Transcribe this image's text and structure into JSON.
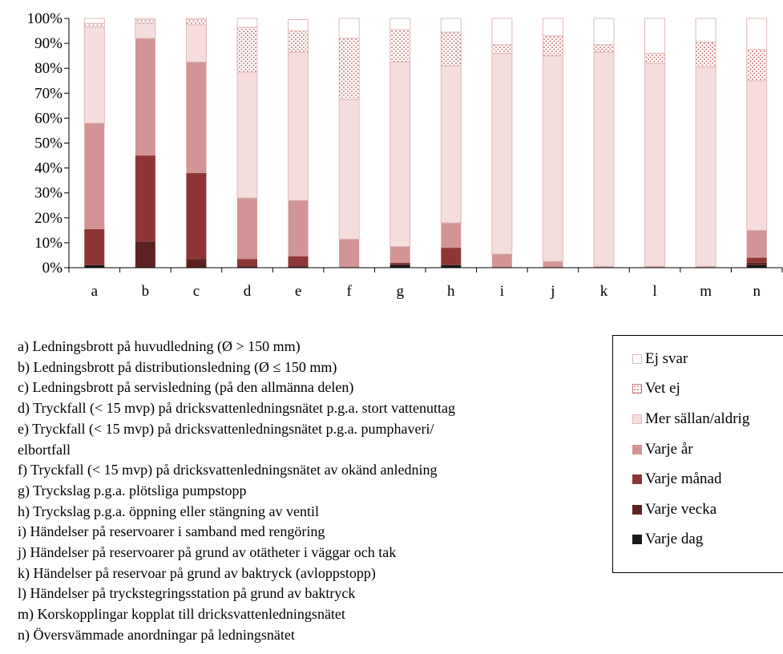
{
  "colors": {
    "Varje dag": "#1a1a1a",
    "Varje vecka": "#5c2222",
    "Varje månad": "#8e3636",
    "Varje år": "#d29494",
    "Mer sällan/aldrig": "#f5dddd",
    "Vet ej": "pattern-dots",
    "Ej svar": "#ffffff",
    "pattern_dot": "#c77a7a",
    "bar_border": "#e3b8b8",
    "axis": "#000000"
  },
  "chart_data": {
    "type": "bar",
    "stacked": true,
    "categories": [
      "a",
      "b",
      "c",
      "d",
      "e",
      "f",
      "g",
      "h",
      "i",
      "j",
      "k",
      "l",
      "m",
      "n"
    ],
    "ylim": [
      0,
      100
    ],
    "yticks": [
      "0%",
      "10%",
      "20%",
      "30%",
      "40%",
      "50%",
      "60%",
      "70%",
      "80%",
      "90%",
      "100%"
    ],
    "grid": false,
    "legend_position": "bottom-right",
    "series": [
      {
        "name": "Varje dag",
        "values": [
          1,
          0,
          0,
          0,
          0,
          0,
          1,
          1,
          0,
          0,
          0,
          0,
          0,
          1
        ]
      },
      {
        "name": "Varje vecka",
        "values": [
          0,
          10.5,
          3.5,
          0.5,
          0.5,
          0,
          0.5,
          0,
          0,
          0,
          0,
          0,
          0,
          1
        ]
      },
      {
        "name": "Varje månad",
        "values": [
          14.5,
          34.5,
          34.5,
          3,
          4,
          0,
          0.5,
          7,
          0,
          0,
          0,
          0,
          0,
          2
        ]
      },
      {
        "name": "Varje år",
        "values": [
          42.5,
          47,
          44.5,
          24.5,
          22.5,
          11.5,
          6.5,
          10,
          5.5,
          2.5,
          0.5,
          0.5,
          0.5,
          11
        ]
      },
      {
        "name": "Mer sällan/aldrig",
        "values": [
          38.5,
          6,
          15,
          50.5,
          59.5,
          56,
          74,
          63,
          80.5,
          82.5,
          86,
          81.5,
          80,
          60
        ]
      },
      {
        "name": "Vet ej",
        "values": [
          1.5,
          1.5,
          2,
          18,
          8.5,
          24.5,
          13,
          13.5,
          3.5,
          8,
          3,
          4,
          10,
          12.5
        ]
      },
      {
        "name": "Ej svar",
        "values": [
          2,
          0.5,
          0.5,
          3.5,
          4.5,
          8,
          4.5,
          5.5,
          10.5,
          7,
          10.5,
          14,
          9.5,
          12.5
        ]
      }
    ]
  },
  "descriptions": [
    "a) Ledningsbrott på huvudledning (Ø > 150 mm)",
    "b) Ledningsbrott på distributionsledning (Ø ≤ 150 mm)",
    "c) Ledningsbrott på servisledning (på den allmänna delen)",
    "d) Tryckfall (< 15 mvp) på dricksvattenledningsnätet p.g.a. stort vattenuttag",
    "e) Tryckfall (< 15 mvp) på dricksvattenledningsnätet p.g.a. pumphaveri/",
    "elbortfall",
    "f) Tryckfall (< 15 mvp) på dricksvattenledningsnätet av okänd anledning",
    "g) Tryckslag p.g.a. plötsliga pumpstopp",
    "h) Tryckslag p.g.a. öppning eller stängning av ventil",
    "i) Händelser på reservoarer i samband med rengöring",
    "j) Händelser på reservoarer på grund av otätheter i väggar och tak",
    "k) Händelser på reservoar på grund av baktryck (avloppstopp)",
    "l) Händelser på tryckstegringsstation på grund av baktryck",
    "m) Korskopplingar kopplat till dricksvattenledningsnätet",
    "n) Översvämmade anordningar på ledningsnätet"
  ],
  "legend": [
    "Ej svar",
    "Vet ej",
    "Mer sällan/aldrig",
    "Varje år",
    "Varje månad",
    "Varje vecka",
    "Varje dag"
  ]
}
